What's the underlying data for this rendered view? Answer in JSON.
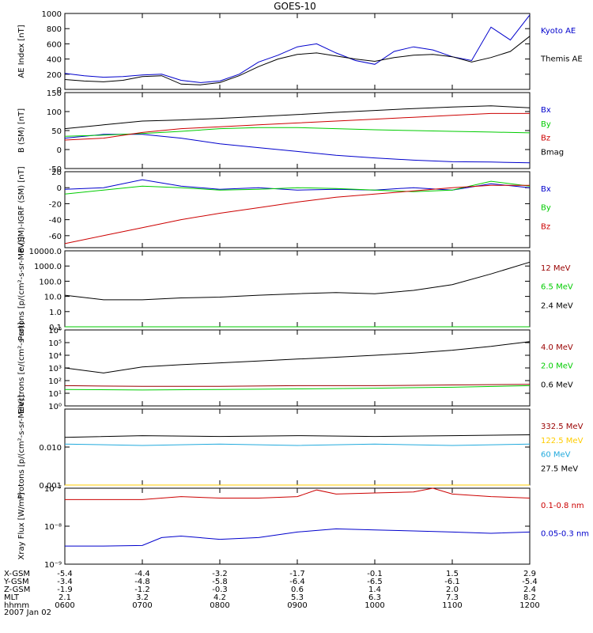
{
  "title": "GOES-10",
  "date_label": "2007 Jan 02",
  "coord_rows": [
    {
      "label": "X-GSM",
      "values": [
        "-5.4",
        "-4.4",
        "-3.2",
        "-1.7",
        "-0.1",
        "1.5",
        "2.9"
      ]
    },
    {
      "label": "Y-GSM",
      "values": [
        "-3.4",
        "-4.8",
        "-5.8",
        "-6.4",
        "-6.5",
        "-6.1",
        "-5.4"
      ]
    },
    {
      "label": "Z-GSM",
      "values": [
        "-1.9",
        "-1.2",
        "-0.3",
        "0.6",
        "1.4",
        "2.0",
        "2.4"
      ]
    },
    {
      "label": "MLT",
      "values": [
        "2.1",
        "3.2",
        "4.2",
        "5.3",
        "6.3",
        "7.3",
        "8.2"
      ]
    },
    {
      "label": "hhmm",
      "values": [
        "0600",
        "0700",
        "0800",
        "0900",
        "1000",
        "1100",
        "1200"
      ]
    }
  ],
  "chart_data": [
    {
      "type": "line",
      "ylabel": "AE Index [nT]",
      "yscale": "linear",
      "ylim": [
        0,
        1000
      ],
      "yticks": [
        "0",
        "200",
        "400",
        "600",
        "800",
        "1000"
      ],
      "xlim": [
        "0600",
        "1200"
      ],
      "series": [
        {
          "name": "Kyoto AE",
          "color": "#0000cc",
          "x": [
            "0600",
            "0615",
            "0630",
            "0645",
            "0700",
            "0715",
            "0730",
            "0745",
            "0800",
            "0815",
            "0830",
            "0845",
            "0900",
            "0915",
            "0930",
            "0945",
            "1000",
            "1015",
            "1030",
            "1045",
            "1100",
            "1115",
            "1130",
            "1145",
            "1200"
          ],
          "y": [
            210,
            180,
            160,
            170,
            190,
            200,
            120,
            90,
            110,
            200,
            360,
            450,
            560,
            600,
            480,
            380,
            330,
            500,
            560,
            520,
            430,
            380,
            820,
            650,
            980
          ]
        },
        {
          "name": "Themis AE",
          "color": "#000000",
          "x": [
            "0600",
            "0615",
            "0630",
            "0645",
            "0700",
            "0715",
            "0730",
            "0745",
            "0800",
            "0815",
            "0830",
            "0845",
            "0900",
            "0915",
            "0930",
            "0945",
            "1000",
            "1015",
            "1030",
            "1045",
            "1100",
            "1115",
            "1130",
            "1145",
            "1200"
          ],
          "y": [
            130,
            110,
            100,
            120,
            170,
            180,
            70,
            60,
            90,
            180,
            300,
            400,
            460,
            480,
            440,
            400,
            370,
            420,
            450,
            460,
            430,
            360,
            420,
            500,
            700
          ]
        }
      ]
    },
    {
      "type": "line",
      "ylabel": "B (SM) [nT]",
      "yscale": "linear",
      "ylim": [
        -50,
        150
      ],
      "yticks": [
        "-50",
        "0",
        "50",
        "100",
        "150"
      ],
      "xlim": [
        "0600",
        "1200"
      ],
      "series": [
        {
          "name": "Bx",
          "color": "#0000cc",
          "x": [
            "0600",
            "0630",
            "0700",
            "0730",
            "0800",
            "0830",
            "0900",
            "0930",
            "1000",
            "1030",
            "1100",
            "1130",
            "1200"
          ],
          "y": [
            30,
            40,
            40,
            30,
            15,
            5,
            -5,
            -15,
            -22,
            -28,
            -32,
            -33,
            -35
          ]
        },
        {
          "name": "By",
          "color": "#00cc00",
          "x": [
            "0600",
            "0630",
            "0700",
            "0730",
            "0800",
            "0830",
            "0900",
            "0930",
            "1000",
            "1030",
            "1100",
            "1130",
            "1200"
          ],
          "y": [
            35,
            38,
            42,
            48,
            55,
            58,
            58,
            55,
            52,
            50,
            48,
            46,
            44
          ]
        },
        {
          "name": "Bz",
          "color": "#cc0000",
          "x": [
            "0600",
            "0630",
            "0700",
            "0730",
            "0800",
            "0830",
            "0900",
            "0930",
            "1000",
            "1030",
            "1100",
            "1130",
            "1200"
          ],
          "y": [
            25,
            30,
            45,
            55,
            60,
            65,
            70,
            75,
            80,
            85,
            90,
            95,
            95
          ]
        },
        {
          "name": "Bmag",
          "color": "#000000",
          "x": [
            "0600",
            "0630",
            "0700",
            "0730",
            "0800",
            "0830",
            "0900",
            "0930",
            "1000",
            "1030",
            "1100",
            "1130",
            "1200"
          ],
          "y": [
            55,
            65,
            75,
            78,
            82,
            87,
            92,
            98,
            103,
            108,
            112,
            115,
            110
          ]
        }
      ]
    },
    {
      "type": "line",
      "ylabel": "B (SM)-IGRF (SM) [nT]",
      "yscale": "linear",
      "ylim": [
        -75,
        20
      ],
      "yticks": [
        "-60",
        "-40",
        "-20",
        "0",
        "20"
      ],
      "xlim": [
        "0600",
        "1200"
      ],
      "series": [
        {
          "name": "Bx",
          "color": "#0000cc",
          "x": [
            "0600",
            "0630",
            "0700",
            "0730",
            "0800",
            "0830",
            "0900",
            "0930",
            "1000",
            "1030",
            "1100",
            "1130",
            "1200"
          ],
          "y": [
            -2,
            0,
            10,
            2,
            -2,
            0,
            -3,
            -2,
            -3,
            0,
            -3,
            5,
            0
          ]
        },
        {
          "name": "By",
          "color": "#00cc00",
          "x": [
            "0600",
            "0630",
            "0700",
            "0730",
            "0800",
            "0830",
            "0900",
            "0930",
            "1000",
            "1030",
            "1100",
            "1130",
            "1200"
          ],
          "y": [
            -8,
            -3,
            2,
            0,
            -3,
            -2,
            0,
            -1,
            -3,
            -5,
            -3,
            8,
            2
          ]
        },
        {
          "name": "Bz",
          "color": "#cc0000",
          "x": [
            "0600",
            "0630",
            "0700",
            "0730",
            "0800",
            "0830",
            "0900",
            "0930",
            "1000",
            "1030",
            "1100",
            "1130",
            "1200"
          ],
          "y": [
            -70,
            -60,
            -50,
            -40,
            -32,
            -25,
            -18,
            -12,
            -8,
            -4,
            0,
            3,
            3
          ]
        }
      ]
    },
    {
      "type": "line",
      "ylabel": "Protons [p/(cm²-s-sr-MeV)]",
      "yscale": "log",
      "ylim": [
        0.1,
        10000
      ],
      "yticks": [
        "0.1",
        "1.0",
        "10.0",
        "100.0",
        "1000.0",
        "10000.0"
      ],
      "xlim": [
        "0600",
        "1200"
      ],
      "series": [
        {
          "name": "12 MeV",
          "color": "#990000",
          "x": [
            "0600",
            "1200"
          ],
          "y": [
            0.1,
            0.1
          ]
        },
        {
          "name": "6.5 MeV",
          "color": "#00cc00",
          "x": [
            "0600",
            "1200"
          ],
          "y": [
            0.1,
            0.1
          ]
        },
        {
          "name": "2.4 MeV",
          "color": "#000000",
          "x": [
            "0600",
            "0630",
            "0700",
            "0730",
            "0800",
            "0830",
            "0900",
            "0930",
            "1000",
            "1030",
            "1100",
            "1130",
            "1200"
          ],
          "y": [
            12,
            6,
            6,
            8,
            9,
            12,
            15,
            18,
            15,
            25,
            60,
            300,
            1800
          ]
        }
      ]
    },
    {
      "type": "line",
      "ylabel": "Electrons [e/(cm²-s-sr)]",
      "yscale": "log",
      "ylim": [
        1,
        1000000
      ],
      "yticks": [
        "10⁰",
        "10¹",
        "10²",
        "10³",
        "10⁴",
        "10⁵",
        "10⁶"
      ],
      "xlim": [
        "0600",
        "1200"
      ],
      "series": [
        {
          "name": "4.0 MeV",
          "color": "#990000",
          "x": [
            "0600",
            "0700",
            "0800",
            "0900",
            "1000",
            "1100",
            "1200"
          ],
          "y": [
            40,
            35,
            35,
            40,
            40,
            45,
            50
          ]
        },
        {
          "name": "2.0 MeV",
          "color": "#00cc00",
          "x": [
            "0600",
            "0700",
            "0800",
            "0900",
            "1000",
            "1100",
            "1200"
          ],
          "y": [
            20,
            18,
            20,
            22,
            25,
            30,
            40
          ]
        },
        {
          "name": "0.6 MeV",
          "color": "#000000",
          "x": [
            "0600",
            "0630",
            "0700",
            "0730",
            "0800",
            "0830",
            "0900",
            "0930",
            "1000",
            "1030",
            "1100",
            "1130",
            "1200"
          ],
          "y": [
            1000,
            400,
            1200,
            1800,
            2500,
            3500,
            5000,
            7000,
            10000,
            15000,
            25000,
            50000,
            120000
          ]
        }
      ]
    },
    {
      "type": "line",
      "ylabel": "Protons [p/(cm²-s-sr-MeV)]",
      "yscale": "log",
      "ylim": [
        0.001,
        0.1
      ],
      "yticks": [
        "0.001",
        "0.010"
      ],
      "xlim": [
        "0600",
        "1200"
      ],
      "series": [
        {
          "name": "332.5 MeV",
          "color": "#990000",
          "x": [
            "0600",
            "1200"
          ],
          "y": [
            0.001,
            0.001
          ]
        },
        {
          "name": "122.5 MeV",
          "color": "#ffcc00",
          "x": [
            "0600",
            "1200"
          ],
          "y": [
            0.001,
            0.001
          ]
        },
        {
          "name": "60 MeV",
          "color": "#22aadd",
          "x": [
            "0600",
            "0700",
            "0800",
            "0900",
            "1000",
            "1100",
            "1200"
          ],
          "y": [
            0.012,
            0.011,
            0.012,
            0.011,
            0.012,
            0.011,
            0.012
          ]
        },
        {
          "name": "27.5 MeV",
          "color": "#000000",
          "x": [
            "0600",
            "0700",
            "0800",
            "0900",
            "1000",
            "1100",
            "1200"
          ],
          "y": [
            0.018,
            0.02,
            0.019,
            0.02,
            0.019,
            0.02,
            0.021
          ]
        }
      ]
    },
    {
      "type": "line",
      "ylabel": "Xray Flux [W/m²]",
      "yscale": "log",
      "ylim": [
        1e-09,
        1e-07
      ],
      "yticks": [
        "10⁻⁹",
        "10⁻⁸",
        "10⁻⁷"
      ],
      "xlim": [
        "0600",
        "1200"
      ],
      "series": [
        {
          "name": "0.1-0.8 nm",
          "color": "#cc0000",
          "x": [
            "0600",
            "0630",
            "0700",
            "0730",
            "0800",
            "0830",
            "0900",
            "0915",
            "0930",
            "1000",
            "1030",
            "1045",
            "1100",
            "1130",
            "1200"
          ],
          "y": [
            5e-08,
            5e-08,
            5e-08,
            6e-08,
            5.5e-08,
            5.5e-08,
            6e-08,
            9e-08,
            7e-08,
            7.5e-08,
            8e-08,
            1e-07,
            7e-08,
            6e-08,
            5.5e-08
          ]
        },
        {
          "name": "0.05-0.3 nm",
          "color": "#0000cc",
          "x": [
            "0600",
            "0630",
            "0700",
            "0715",
            "0730",
            "0800",
            "0830",
            "0900",
            "0930",
            "1000",
            "1030",
            "1100",
            "1130",
            "1200"
          ],
          "y": [
            3e-09,
            3e-09,
            3.1e-09,
            5e-09,
            5.5e-09,
            4.5e-09,
            5e-09,
            7e-09,
            8.5e-09,
            8e-09,
            7.5e-09,
            7e-09,
            6.5e-09,
            7e-09
          ]
        }
      ]
    }
  ]
}
